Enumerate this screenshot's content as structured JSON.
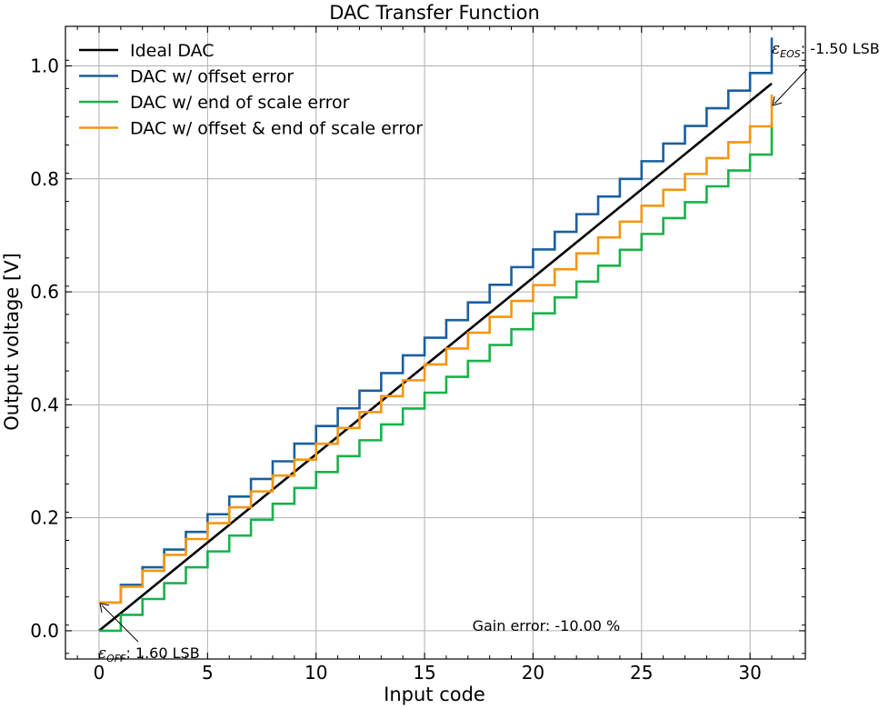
{
  "chart_data": {
    "type": "line",
    "title": "DAC Transfer Function",
    "xlabel": "Input code",
    "ylabel": "Output voltage [V]",
    "xlim": [
      -1.55,
      32.55
    ],
    "ylim": [
      -0.05,
      1.07
    ],
    "xticks": [
      0,
      5,
      10,
      15,
      20,
      25,
      30
    ],
    "xtick_labels": [
      "0",
      "5",
      "10",
      "15",
      "20",
      "25",
      "30"
    ],
    "yticks": [
      0.0,
      0.2,
      0.4,
      0.6,
      0.8,
      1.0
    ],
    "ytick_labels": [
      "0.0",
      "0.2",
      "0.4",
      "0.6",
      "0.8",
      "1.0"
    ],
    "grid": true,
    "legend_position": "top-left",
    "n_codes": 32,
    "series": [
      {
        "name": "Ideal DAC",
        "style": "line",
        "color": "#000000",
        "offset": 0.0,
        "step": 0.03125
      },
      {
        "name": "DAC w/ offset error",
        "style": "step",
        "color": "#1a5fa0",
        "offset": 0.05,
        "step": 0.03125
      },
      {
        "name": "DAC w/ end of scale error",
        "style": "step",
        "color": "#17b24a",
        "offset": 0.0,
        "step": 0.0281
      },
      {
        "name": "DAC w/ offset & end of scale error",
        "style": "step",
        "color": "#f5960f",
        "offset": 0.05,
        "step": 0.0281
      }
    ],
    "annotations": {
      "eos_eps": "ε",
      "eos_sub": "EOS",
      "eos_text": ": -1.50 LSB",
      "eos_point": [
        31,
        0.925
      ],
      "off_eps": "ε",
      "off_sub": "OFF",
      "off_text": ": 1.60 LSB",
      "off_point": [
        0,
        0.05
      ],
      "gain_text": "Gain error: -10.00 %",
      "gain_point": [
        17.2,
        0.0
      ]
    }
  }
}
